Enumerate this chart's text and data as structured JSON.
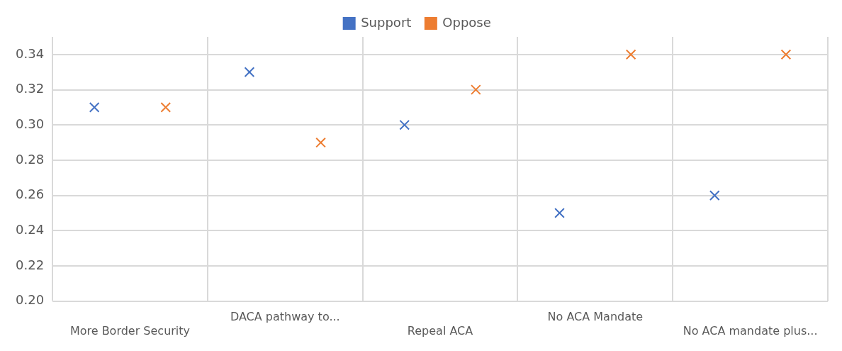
{
  "chart_data": {
    "type": "scatter",
    "categories": [
      "More Border Security",
      "DACA pathway to...",
      "Repeal ACA",
      "No ACA Mandate",
      "No ACA mandate plus..."
    ],
    "series": [
      {
        "name": "Support",
        "color": "#4472c4",
        "values": [
          0.31,
          0.33,
          0.3,
          0.25,
          0.26
        ]
      },
      {
        "name": "Oppose",
        "color": "#ed7d31",
        "values": [
          0.31,
          0.29,
          0.32,
          0.34,
          0.34
        ]
      }
    ],
    "ylim": [
      0.2,
      0.35
    ],
    "yticks": [
      {
        "value": 0.2,
        "label": "0.20"
      },
      {
        "value": 0.22,
        "label": "0.22"
      },
      {
        "value": 0.24,
        "label": "0.24"
      },
      {
        "value": 0.26,
        "label": "0.26"
      },
      {
        "value": 0.28,
        "label": "0.28"
      },
      {
        "value": 0.3,
        "label": "0.30"
      },
      {
        "value": 0.32,
        "label": "0.32"
      },
      {
        "value": 0.34,
        "label": "0.34"
      }
    ],
    "grid": true,
    "legend": "top",
    "marker": "cross"
  }
}
